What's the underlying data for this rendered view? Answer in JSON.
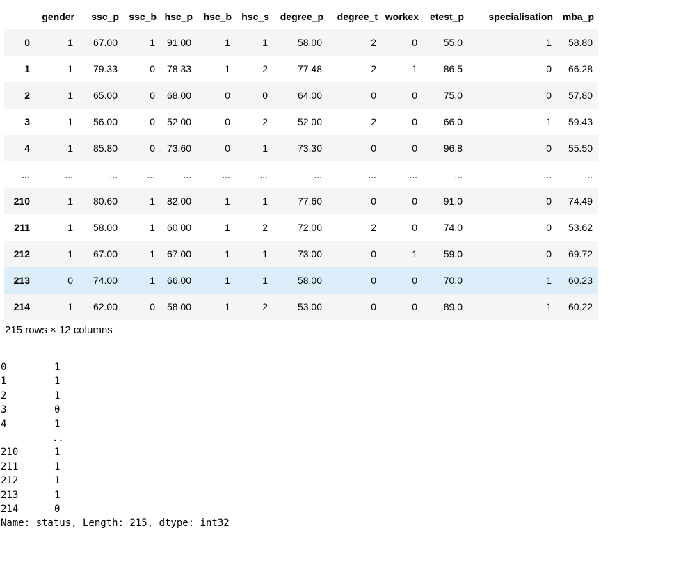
{
  "dataframe": {
    "columns": [
      "",
      "gender",
      "ssc_p",
      "ssc_b",
      "hsc_p",
      "hsc_b",
      "hsc_s",
      "degree_p",
      "degree_t",
      "workex",
      "etest_p",
      "specialisation",
      "mba_p"
    ],
    "rows": [
      {
        "index": "0",
        "cells": [
          "1",
          "67.00",
          "1",
          "91.00",
          "1",
          "1",
          "58.00",
          "2",
          "0",
          "55.0",
          "1",
          "58.80"
        ]
      },
      {
        "index": "1",
        "cells": [
          "1",
          "79.33",
          "0",
          "78.33",
          "1",
          "2",
          "77.48",
          "2",
          "1",
          "86.5",
          "0",
          "66.28"
        ]
      },
      {
        "index": "2",
        "cells": [
          "1",
          "65.00",
          "0",
          "68.00",
          "0",
          "0",
          "64.00",
          "0",
          "0",
          "75.0",
          "0",
          "57.80"
        ]
      },
      {
        "index": "3",
        "cells": [
          "1",
          "56.00",
          "0",
          "52.00",
          "0",
          "2",
          "52.00",
          "2",
          "0",
          "66.0",
          "1",
          "59.43"
        ]
      },
      {
        "index": "4",
        "cells": [
          "1",
          "85.80",
          "0",
          "73.60",
          "0",
          "1",
          "73.30",
          "0",
          "0",
          "96.8",
          "0",
          "55.50"
        ]
      },
      {
        "index": "...",
        "cells": [
          "...",
          "...",
          "...",
          "...",
          "...",
          "...",
          "...",
          "...",
          "...",
          "...",
          "...",
          "..."
        ]
      },
      {
        "index": "210",
        "cells": [
          "1",
          "80.60",
          "1",
          "82.00",
          "1",
          "1",
          "77.60",
          "0",
          "0",
          "91.0",
          "0",
          "74.49"
        ]
      },
      {
        "index": "211",
        "cells": [
          "1",
          "58.00",
          "1",
          "60.00",
          "1",
          "2",
          "72.00",
          "2",
          "0",
          "74.0",
          "0",
          "53.62"
        ]
      },
      {
        "index": "212",
        "cells": [
          "1",
          "67.00",
          "1",
          "67.00",
          "1",
          "1",
          "73.00",
          "0",
          "1",
          "59.0",
          "0",
          "69.72"
        ]
      },
      {
        "index": "213",
        "cells": [
          "0",
          "74.00",
          "1",
          "66.00",
          "1",
          "1",
          "58.00",
          "0",
          "0",
          "70.0",
          "1",
          "60.23"
        ]
      },
      {
        "index": "214",
        "cells": [
          "1",
          "62.00",
          "0",
          "58.00",
          "1",
          "2",
          "53.00",
          "0",
          "0",
          "89.0",
          "1",
          "60.22"
        ]
      }
    ],
    "shape_text": "215 rows × 12 columns"
  },
  "series_output": {
    "rows": [
      {
        "index": "0",
        "value": "1"
      },
      {
        "index": "1",
        "value": "1"
      },
      {
        "index": "2",
        "value": "1"
      },
      {
        "index": "3",
        "value": "0"
      },
      {
        "index": "4",
        "value": "1"
      },
      {
        "index": "",
        "value": ".."
      },
      {
        "index": "210",
        "value": "1"
      },
      {
        "index": "211",
        "value": "1"
      },
      {
        "index": "212",
        "value": "1"
      },
      {
        "index": "213",
        "value": "1"
      },
      {
        "index": "214",
        "value": "0"
      }
    ],
    "footer": "Name: status, Length: 215, dtype: int32"
  },
  "colors": {
    "row_stripe": "#f5f5f5",
    "row_hover": "#dbeefa"
  }
}
